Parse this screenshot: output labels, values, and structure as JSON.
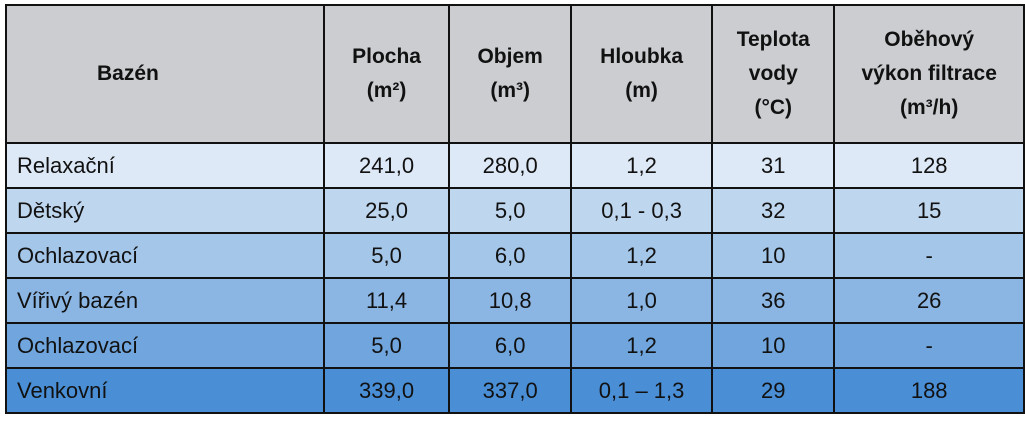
{
  "table": {
    "header": [
      [
        "Bazén"
      ],
      [
        "Plocha",
        "(m²)"
      ],
      [
        "Objem",
        "(m³)"
      ],
      [
        "Hloubka",
        "(m)"
      ],
      [
        "Teplota",
        "vody",
        "(°C)"
      ],
      [
        "Oběhový",
        "výkon filtrace",
        "(m³/h)"
      ]
    ],
    "rows": [
      [
        "Relaxační",
        "241,0",
        "280,0",
        "1,2",
        "31",
        "128"
      ],
      [
        "Dětský",
        "25,0",
        "5,0",
        "0,1 - 0,3",
        "32",
        "15"
      ],
      [
        "Ochlazovací",
        "5,0",
        "6,0",
        "1,2",
        "10",
        "-"
      ],
      [
        "Vířivý bazén",
        "11,4",
        "10,8",
        "1,0",
        "36",
        "26"
      ],
      [
        "Ochlazovací",
        "5,0",
        "6,0",
        "1,2",
        "10",
        "-"
      ],
      [
        "Venkovní",
        "339,0",
        "337,0",
        "0,1 – 1,3",
        "29",
        "188"
      ]
    ]
  }
}
